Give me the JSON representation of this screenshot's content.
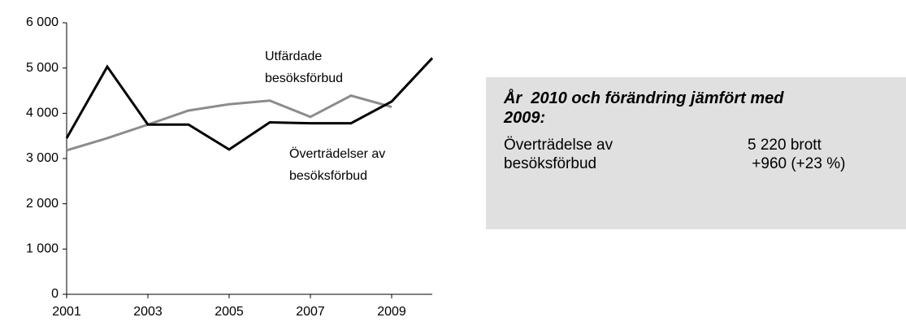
{
  "chart_data": {
    "type": "line",
    "x": [
      2001,
      2002,
      2003,
      2004,
      2005,
      2006,
      2007,
      2008,
      2009,
      2010
    ],
    "series": [
      {
        "name": "Överträdelser av besöksförbud",
        "color": "#000000",
        "values": [
          3450,
          5030,
          3750,
          3750,
          3200,
          3800,
          3780,
          3780,
          4260,
          5220
        ]
      },
      {
        "name": "Utfärdade besöksförbud",
        "color": "#8c8c8c",
        "values": [
          3180,
          3450,
          3750,
          4060,
          4200,
          4280,
          3920,
          4390,
          4140,
          null
        ]
      }
    ],
    "xlim": [
      2001,
      2010
    ],
    "xticks": [
      2001,
      2003,
      2005,
      2007,
      2009
    ],
    "ylim": [
      0,
      6000
    ],
    "yticks": [
      0,
      {
        "value": 1000,
        "label": "1 000"
      },
      {
        "value": 2000,
        "label": "2 000"
      },
      {
        "value": 3000,
        "label": "3 000"
      },
      {
        "value": 4000,
        "label": "4 000"
      },
      {
        "value": 5000,
        "label": "5 000"
      },
      {
        "value": 6000,
        "label": "6 000"
      }
    ],
    "annotations": [
      [
        "Utfärdade",
        "besöksförbud"
      ],
      [
        "Överträdelser av",
        "besöksförbud"
      ]
    ],
    "info_box": {
      "title_lines": [
        "År  2010 och förändring jämfört med",
        "2009:"
      ],
      "label_lines": [
        "Överträdelse av",
        "besöksförbud"
      ],
      "value_lines": [
        "5 220 brott",
        " +960 (+23 %)"
      ]
    }
  }
}
